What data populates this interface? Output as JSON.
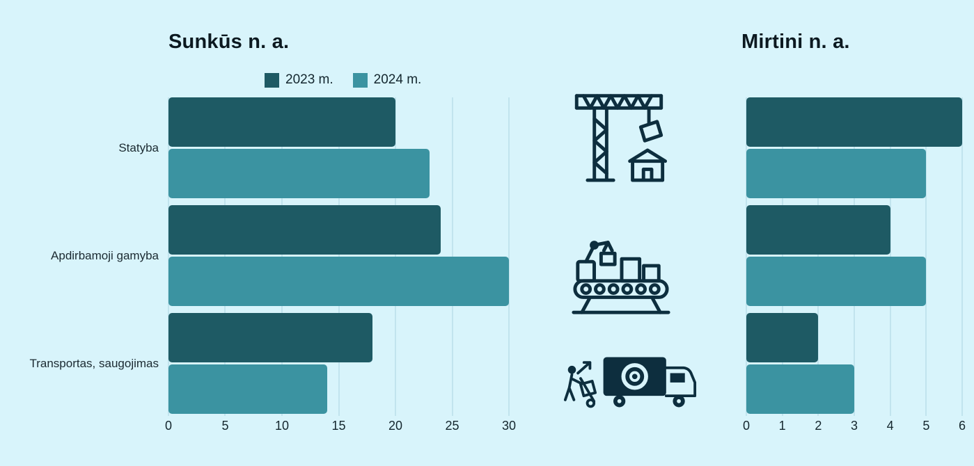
{
  "colors": {
    "background": "#d8f4fb",
    "icon": "#0d2e3e",
    "grid": "#c1e4ee",
    "series_2023": "#1e5a64",
    "series_2024": "#3b93a1"
  },
  "icons": [
    "crane-icon",
    "conveyor-icon",
    "truck-icon"
  ],
  "chart_data": [
    {
      "type": "bar",
      "orientation": "horizontal",
      "title": "Sunkūs n. a.",
      "categories": [
        "Statyba",
        "Apdirbamoji gamyba",
        "Transportas, saugojimas"
      ],
      "series": [
        {
          "name": "2023 m.",
          "color": "#1e5a64",
          "values": [
            20,
            24,
            18
          ]
        },
        {
          "name": "2024 m.",
          "color": "#3b93a1",
          "values": [
            23,
            30,
            14
          ]
        }
      ],
      "xlim": [
        0,
        30
      ],
      "xticks": [
        0,
        5,
        10,
        15,
        20,
        25,
        30
      ],
      "grid": true,
      "legend_position": "top"
    },
    {
      "type": "bar",
      "orientation": "horizontal",
      "title": "Mirtini n. a.",
      "categories": [
        "Statyba",
        "Apdirbamoji gamyba",
        "Transportas, saugojimas"
      ],
      "series": [
        {
          "name": "2023 m.",
          "color": "#1e5a64",
          "values": [
            6,
            4,
            2
          ]
        },
        {
          "name": "2024 m.",
          "color": "#3b93a1",
          "values": [
            5,
            5,
            3
          ]
        }
      ],
      "xlim": [
        0,
        6
      ],
      "xticks": [
        0,
        1,
        2,
        3,
        4,
        5,
        6
      ],
      "grid": true,
      "legend_position": "none"
    }
  ]
}
